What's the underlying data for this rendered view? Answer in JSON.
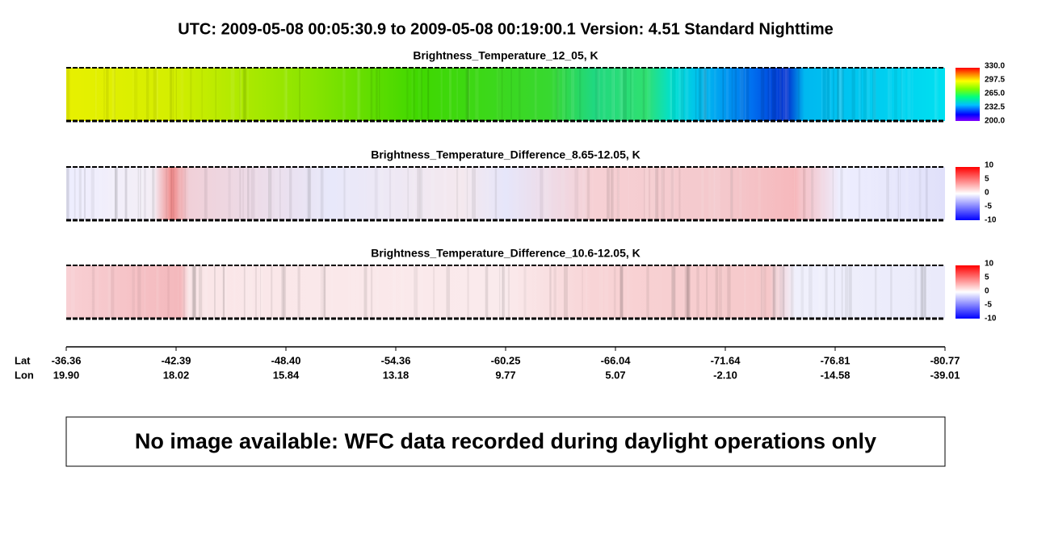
{
  "header": {
    "title": "UTC:  2009-05-08   00:05:30.9  to  2009-05-08   00:19:00.1    Version: 4.51  Standard Nighttime"
  },
  "panels": [
    {
      "title": "Brightness_Temperature_12_05, K",
      "colorbar": {
        "scheme": "rainbow",
        "ticks": [
          "330.0",
          "297.5",
          "265.0",
          "232.5",
          "200.0"
        ]
      }
    },
    {
      "title": "Brightness_Temperature_Difference_8.65-12.05, K",
      "colorbar": {
        "scheme": "diverging",
        "ticks": [
          "10",
          "5",
          "0",
          "-5",
          "-10"
        ]
      }
    },
    {
      "title": "Brightness_Temperature_Difference_10.6-12.05, K",
      "colorbar": {
        "scheme": "diverging",
        "ticks": [
          "10",
          "5",
          "0",
          "-5",
          "-10"
        ]
      }
    }
  ],
  "axis": {
    "lat_label": "Lat",
    "lon_label": "Lon",
    "lat": [
      "-36.36",
      "-42.39",
      "-48.40",
      "-54.36",
      "-60.25",
      "-66.04",
      "-71.64",
      "-76.81",
      "-80.77"
    ],
    "lon": [
      "19.90",
      "18.02",
      "15.84",
      "13.18",
      "9.77",
      "5.07",
      "-2.10",
      "-14.58",
      "-39.01"
    ]
  },
  "notice": "No image available: WFC data recorded during daylight operations only"
}
